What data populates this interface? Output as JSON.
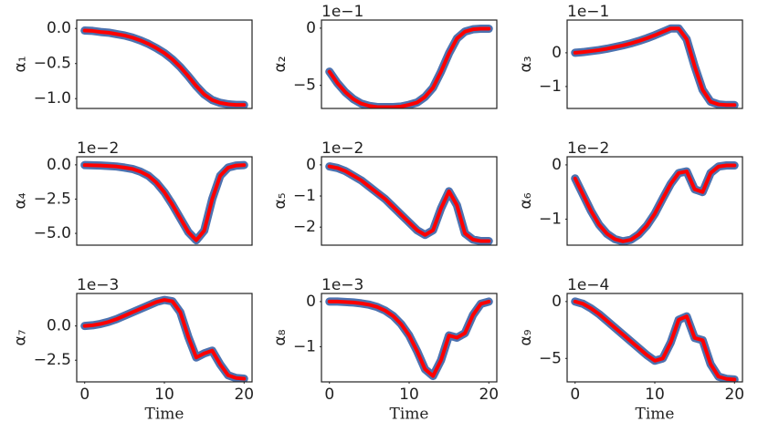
{
  "chart_data": [
    {
      "type": "line",
      "ylabel": "α₁",
      "x": [
        0,
        1,
        2,
        3,
        4,
        5,
        6,
        7,
        8,
        9,
        10,
        11,
        12,
        13,
        14,
        15,
        16,
        17,
        18,
        19,
        20
      ],
      "xlim": [
        -1,
        21
      ],
      "ylim": [
        -1.14,
        0.12
      ],
      "yticks": [
        {
          "value": 0,
          "label": "0.0"
        },
        {
          "value": -0.5,
          "label": "−0.5"
        },
        {
          "value": -1,
          "label": "−1.0"
        }
      ],
      "series": [
        {
          "color": "#4c72b0",
          "values": [
            -0.03,
            -0.035,
            -0.05,
            -0.06,
            -0.08,
            -0.1,
            -0.13,
            -0.17,
            -0.22,
            -0.28,
            -0.35,
            -0.44,
            -0.55,
            -0.68,
            -0.82,
            -0.94,
            -1.02,
            -1.06,
            -1.08,
            -1.09,
            -1.09
          ]
        },
        {
          "color": "#ff0000",
          "values": [
            -0.03,
            -0.035,
            -0.05,
            -0.06,
            -0.08,
            -0.1,
            -0.13,
            -0.17,
            -0.22,
            -0.28,
            -0.35,
            -0.44,
            -0.55,
            -0.68,
            -0.82,
            -0.94,
            -1.02,
            -1.06,
            -1.08,
            -1.09,
            -1.09
          ]
        }
      ]
    },
    {
      "type": "line",
      "ylabel": "α₂",
      "offset_label": "1e−1",
      "x": [
        0,
        1,
        2,
        3,
        4,
        5,
        6,
        7,
        8,
        9,
        10,
        11,
        12,
        13,
        14,
        15,
        16,
        17,
        18,
        19,
        20
      ],
      "xlim": [
        -1,
        21
      ],
      "ylim": [
        -7.02,
        0.71
      ],
      "yticks": [
        0,
        {
          "value": -5,
          "label": "−5"
        }
      ],
      "series": [
        {
          "color": "#4c72b0",
          "values": [
            -3.8,
            -4.8,
            -5.6,
            -6.2,
            -6.6,
            -6.8,
            -6.9,
            -6.9,
            -6.9,
            -6.85,
            -6.7,
            -6.5,
            -6.0,
            -5.2,
            -3.8,
            -2.2,
            -0.9,
            -0.3,
            -0.1,
            -0.05,
            -0.05
          ]
        },
        {
          "color": "#ff0000",
          "values": [
            -3.8,
            -4.8,
            -5.6,
            -6.2,
            -6.6,
            -6.8,
            -6.9,
            -6.9,
            -6.9,
            -6.85,
            -6.7,
            -6.5,
            -6.0,
            -5.2,
            -3.8,
            -2.2,
            -0.9,
            -0.3,
            -0.1,
            -0.05,
            -0.05
          ]
        }
      ]
    },
    {
      "type": "line",
      "ylabel": "α₃",
      "offset_label": "1e−1",
      "x": [
        0,
        1,
        2,
        3,
        4,
        5,
        6,
        7,
        8,
        9,
        10,
        11,
        12,
        13,
        14,
        15,
        16,
        17,
        18,
        19,
        20
      ],
      "xlim": [
        -1,
        21
      ],
      "ylim": [
        -1.65,
        0.97
      ],
      "yticks": [
        0,
        {
          "value": -1,
          "label": "−1"
        }
      ],
      "series": [
        {
          "color": "#4c72b0",
          "values": [
            0,
            0.02,
            0.05,
            0.08,
            0.12,
            0.17,
            0.22,
            0.28,
            0.35,
            0.43,
            0.52,
            0.62,
            0.72,
            0.72,
            0.4,
            -0.4,
            -1.1,
            -1.45,
            -1.53,
            -1.55,
            -1.55
          ]
        },
        {
          "color": "#ff0000",
          "values": [
            0,
            0.02,
            0.05,
            0.08,
            0.12,
            0.17,
            0.22,
            0.28,
            0.35,
            0.43,
            0.52,
            0.62,
            0.72,
            0.72,
            0.4,
            -0.4,
            -1.1,
            -1.45,
            -1.53,
            -1.55,
            -1.55
          ]
        }
      ]
    },
    {
      "type": "line",
      "ylabel": "α₄",
      "offset_label": "1e−2",
      "x": [
        0,
        1,
        2,
        3,
        4,
        5,
        6,
        7,
        8,
        9,
        10,
        11,
        12,
        13,
        14,
        15,
        16,
        17,
        18,
        19,
        20
      ],
      "xlim": [
        -1,
        21
      ],
      "ylim": [
        -5.86,
        0.59
      ],
      "yticks": [
        {
          "value": 0,
          "label": "0.0"
        },
        {
          "value": -2.5,
          "label": "−2.5"
        },
        {
          "value": -5,
          "label": "−5.0"
        }
      ],
      "series": [
        {
          "color": "#4c72b0",
          "values": [
            -0.02,
            -0.03,
            -0.05,
            -0.08,
            -0.12,
            -0.2,
            -0.3,
            -0.5,
            -0.8,
            -1.3,
            -2.0,
            -2.9,
            -3.9,
            -4.9,
            -5.5,
            -4.8,
            -2.5,
            -0.8,
            -0.2,
            -0.05,
            -0.02
          ]
        },
        {
          "color": "#ff0000",
          "values": [
            -0.02,
            -0.03,
            -0.05,
            -0.08,
            -0.12,
            -0.2,
            -0.3,
            -0.5,
            -0.8,
            -1.3,
            -2.0,
            -2.9,
            -3.9,
            -4.9,
            -5.5,
            -4.8,
            -2.5,
            -0.8,
            -0.2,
            -0.05,
            -0.02
          ]
        }
      ]
    },
    {
      "type": "line",
      "ylabel": "α₅",
      "offset_label": "1e−2",
      "x": [
        0,
        1,
        2,
        3,
        4,
        5,
        6,
        7,
        8,
        9,
        10,
        11,
        12,
        13,
        14,
        15,
        16,
        17,
        18,
        19,
        20
      ],
      "xlim": [
        -1,
        21
      ],
      "ylim": [
        -2.58,
        0.26
      ],
      "yticks": [
        0,
        {
          "value": -1,
          "label": "−1"
        },
        {
          "value": -2,
          "label": "−2"
        }
      ],
      "series": [
        {
          "color": "#4c72b0",
          "values": [
            -0.05,
            -0.1,
            -0.2,
            -0.35,
            -0.5,
            -0.7,
            -0.9,
            -1.1,
            -1.35,
            -1.6,
            -1.85,
            -2.1,
            -2.25,
            -2.1,
            -1.4,
            -0.85,
            -1.3,
            -2.2,
            -2.4,
            -2.45,
            -2.45
          ]
        },
        {
          "color": "#ff0000",
          "values": [
            -0.05,
            -0.1,
            -0.2,
            -0.35,
            -0.5,
            -0.7,
            -0.9,
            -1.1,
            -1.35,
            -1.6,
            -1.85,
            -2.1,
            -2.25,
            -2.1,
            -1.4,
            -0.85,
            -1.3,
            -2.2,
            -2.4,
            -2.45,
            -2.45
          ]
        }
      ]
    },
    {
      "type": "line",
      "ylabel": "α₆",
      "offset_label": "1e−2",
      "x": [
        0,
        1,
        2,
        3,
        4,
        5,
        6,
        7,
        8,
        9,
        10,
        11,
        12,
        13,
        14,
        15,
        16,
        17,
        18,
        19,
        20
      ],
      "xlim": [
        -1,
        21
      ],
      "ylim": [
        -1.48,
        0.15
      ],
      "yticks": [
        0,
        {
          "value": -1,
          "label": "−1"
        }
      ],
      "series": [
        {
          "color": "#4c72b0",
          "values": [
            -0.25,
            -0.55,
            -0.85,
            -1.1,
            -1.27,
            -1.37,
            -1.41,
            -1.38,
            -1.28,
            -1.12,
            -0.9,
            -0.62,
            -0.35,
            -0.15,
            -0.12,
            -0.45,
            -0.5,
            -0.15,
            -0.03,
            -0.01,
            -0.01
          ]
        },
        {
          "color": "#ff0000",
          "values": [
            -0.25,
            -0.55,
            -0.85,
            -1.1,
            -1.27,
            -1.37,
            -1.41,
            -1.38,
            -1.28,
            -1.12,
            -0.9,
            -0.62,
            -0.35,
            -0.15,
            -0.12,
            -0.45,
            -0.5,
            -0.15,
            -0.03,
            -0.01,
            -0.01
          ]
        }
      ]
    },
    {
      "type": "line",
      "ylabel": "α₇",
      "offset_label": "1e−3",
      "xlabel": "Time",
      "x": [
        0,
        1,
        2,
        3,
        4,
        5,
        6,
        7,
        8,
        9,
        10,
        11,
        12,
        13,
        14,
        15,
        16,
        17,
        18,
        19,
        20
      ],
      "xlim": [
        -1,
        21
      ],
      "xticks": [
        0,
        10,
        20
      ],
      "ylim": [
        -4.08,
        2.37
      ],
      "yticks": [
        {
          "value": 0,
          "label": "0.0"
        },
        {
          "value": -2.5,
          "label": "−2.5"
        }
      ],
      "series": [
        {
          "color": "#4c72b0",
          "values": [
            0,
            0.05,
            0.15,
            0.3,
            0.5,
            0.75,
            1.0,
            1.25,
            1.5,
            1.75,
            1.9,
            1.8,
            1.0,
            -0.8,
            -2.3,
            -2.0,
            -1.8,
            -2.8,
            -3.6,
            -3.8,
            -3.85
          ]
        },
        {
          "color": "#ff0000",
          "values": [
            0,
            0.05,
            0.15,
            0.3,
            0.5,
            0.75,
            1.0,
            1.25,
            1.5,
            1.75,
            1.9,
            1.8,
            1.0,
            -0.8,
            -2.3,
            -2.0,
            -1.8,
            -2.8,
            -3.6,
            -3.8,
            -3.85
          ]
        }
      ]
    },
    {
      "type": "line",
      "ylabel": "α₈",
      "offset_label": "1e−3",
      "xlabel": "Time",
      "x": [
        0,
        1,
        2,
        3,
        4,
        5,
        6,
        7,
        8,
        9,
        10,
        11,
        12,
        13,
        14,
        15,
        16,
        17,
        18,
        19,
        20
      ],
      "xlim": [
        -1,
        21
      ],
      "xticks": [
        0,
        10,
        20
      ],
      "ylim": [
        -1.78,
        0.18
      ],
      "yticks": [
        0,
        {
          "value": -1,
          "label": "−1"
        }
      ],
      "series": [
        {
          "color": "#4c72b0",
          "values": [
            0,
            0,
            -0.01,
            -0.02,
            -0.04,
            -0.07,
            -0.12,
            -0.2,
            -0.32,
            -0.5,
            -0.75,
            -1.1,
            -1.5,
            -1.65,
            -1.3,
            -0.75,
            -0.8,
            -0.7,
            -0.3,
            -0.05,
            0
          ]
        },
        {
          "color": "#ff0000",
          "values": [
            0,
            0,
            -0.01,
            -0.02,
            -0.04,
            -0.07,
            -0.12,
            -0.2,
            -0.32,
            -0.5,
            -0.75,
            -1.1,
            -1.5,
            -1.65,
            -1.3,
            -0.75,
            -0.8,
            -0.7,
            -0.3,
            -0.05,
            0
          ]
        }
      ]
    },
    {
      "type": "line",
      "ylabel": "α₉",
      "offset_label": "1e−4",
      "xlabel": "Time",
      "x": [
        0,
        1,
        2,
        3,
        4,
        5,
        6,
        7,
        8,
        9,
        10,
        11,
        12,
        13,
        14,
        15,
        16,
        17,
        18,
        19,
        20
      ],
      "xlim": [
        -1,
        21
      ],
      "xticks": [
        0,
        10,
        20
      ],
      "ylim": [
        -7.06,
        0.71
      ],
      "yticks": [
        0,
        {
          "value": -5,
          "label": "−5"
        }
      ],
      "series": [
        {
          "color": "#4c72b0",
          "values": [
            0,
            -0.2,
            -0.6,
            -1.1,
            -1.7,
            -2.3,
            -2.9,
            -3.5,
            -4.1,
            -4.7,
            -5.2,
            -5.0,
            -3.6,
            -1.6,
            -1.3,
            -3.2,
            -3.4,
            -5.5,
            -6.6,
            -6.8,
            -6.85
          ]
        },
        {
          "color": "#ff0000",
          "values": [
            0,
            -0.2,
            -0.6,
            -1.1,
            -1.7,
            -2.3,
            -2.9,
            -3.5,
            -4.1,
            -4.7,
            -5.2,
            -5.0,
            -3.6,
            -1.6,
            -1.3,
            -3.2,
            -3.4,
            -5.5,
            -6.6,
            -6.8,
            -6.85
          ]
        }
      ]
    }
  ]
}
